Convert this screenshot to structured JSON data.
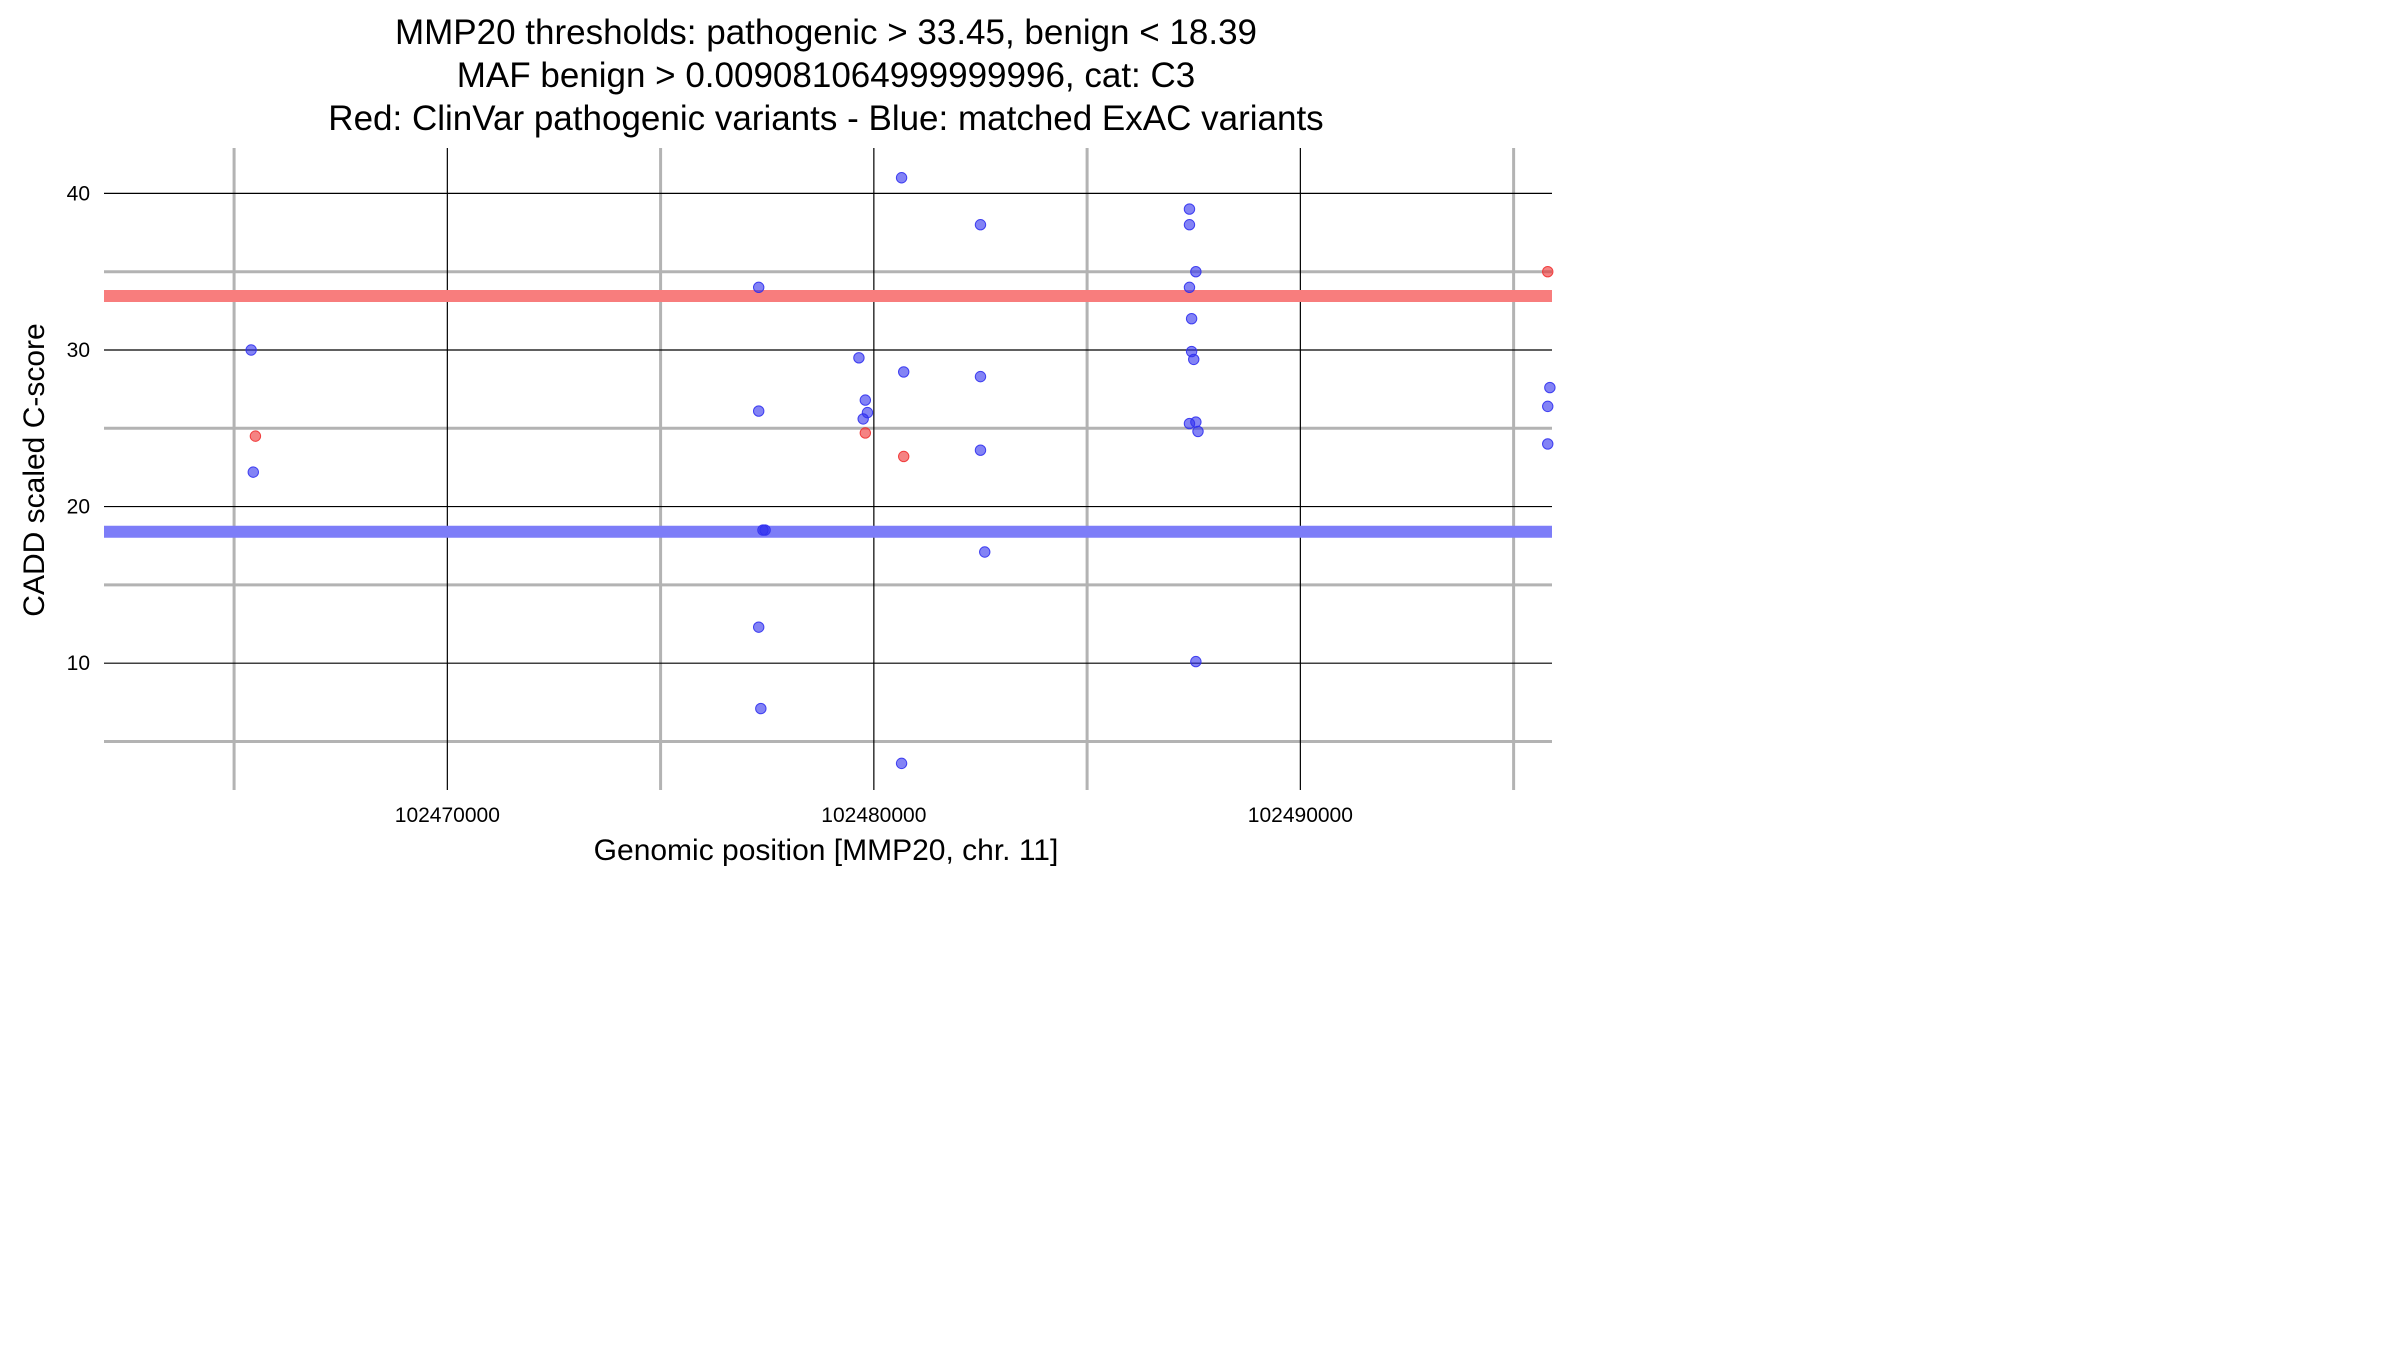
{
  "chart_data": {
    "type": "scatter",
    "title": [
      "MMP20 thresholds: pathogenic > 33.45, benign < 18.39",
      "MAF benign > 0.009081064999999996, cat: C3",
      "Red: ClinVar pathogenic variants - Blue: matched ExAC variants"
    ],
    "xlabel": "Genomic position [MMP20, chr. 11]",
    "ylabel": "CADD scaled C-score",
    "xlim": [
      102461950,
      102495900
    ],
    "ylim": [
      1.9,
      42.9
    ],
    "x_ticks": [
      102470000,
      102480000,
      102490000
    ],
    "y_ticks": [
      10,
      20,
      30,
      40
    ],
    "x_minor": [
      102465000,
      102475000,
      102485000,
      102495000
    ],
    "y_minor": [
      5,
      15,
      25,
      35
    ],
    "grid": true,
    "thresholds": [
      {
        "value": 33.45,
        "color": "#f87d7d"
      },
      {
        "value": 18.39,
        "color": "#7d7df8"
      }
    ],
    "series": [
      {
        "color": "#ef3030",
        "points": [
          {
            "x": 102465500,
            "y": 24.5
          },
          {
            "x": 102479800,
            "y": 24.7
          },
          {
            "x": 102480700,
            "y": 23.2
          },
          {
            "x": 102495800,
            "y": 35.0
          }
        ]
      },
      {
        "color": "#3030ef",
        "points": [
          {
            "x": 102465400,
            "y": 30.0
          },
          {
            "x": 102465450,
            "y": 22.2
          },
          {
            "x": 102477300,
            "y": 34.0
          },
          {
            "x": 102477300,
            "y": 26.1
          },
          {
            "x": 102477400,
            "y": 18.5
          },
          {
            "x": 102477450,
            "y": 18.5
          },
          {
            "x": 102477300,
            "y": 12.3
          },
          {
            "x": 102477350,
            "y": 7.1
          },
          {
            "x": 102479650,
            "y": 29.5
          },
          {
            "x": 102479800,
            "y": 26.8
          },
          {
            "x": 102479850,
            "y": 26.0
          },
          {
            "x": 102479750,
            "y": 25.6
          },
          {
            "x": 102480650,
            "y": 41.0
          },
          {
            "x": 102480700,
            "y": 28.6
          },
          {
            "x": 102480650,
            "y": 3.6
          },
          {
            "x": 102482500,
            "y": 38.0
          },
          {
            "x": 102482500,
            "y": 28.3
          },
          {
            "x": 102482500,
            "y": 23.6
          },
          {
            "x": 102482600,
            "y": 17.1
          },
          {
            "x": 102487400,
            "y": 39.0
          },
          {
            "x": 102487400,
            "y": 38.0
          },
          {
            "x": 102487550,
            "y": 35.0
          },
          {
            "x": 102487400,
            "y": 34.0
          },
          {
            "x": 102487450,
            "y": 32.0
          },
          {
            "x": 102487450,
            "y": 29.9
          },
          {
            "x": 102487500,
            "y": 29.4
          },
          {
            "x": 102487400,
            "y": 25.3
          },
          {
            "x": 102487550,
            "y": 25.4
          },
          {
            "x": 102487600,
            "y": 24.8
          },
          {
            "x": 102487550,
            "y": 10.1
          },
          {
            "x": 102495850,
            "y": 27.6
          },
          {
            "x": 102495800,
            "y": 26.4
          },
          {
            "x": 102495800,
            "y": 24.0
          }
        ]
      }
    ]
  }
}
